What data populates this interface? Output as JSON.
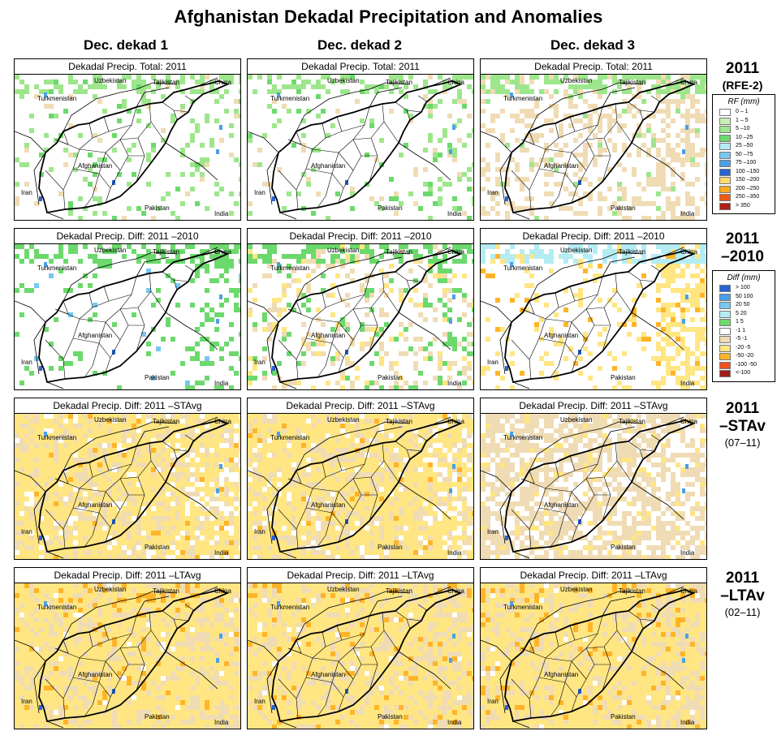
{
  "title": "Afghanistan Dekadal Precipitation and Anomalies",
  "columns": [
    "Dec. dekad 1",
    "Dec. dekad 2",
    "Dec. dekad 3"
  ],
  "rows": [
    {
      "head": "2011",
      "sub": "(RFE-2)",
      "sub2": "",
      "panel_title": "Dekadal Precip. Total: 2011",
      "kind": "total"
    },
    {
      "head": "2011",
      "sub": "–2010",
      "sub2": "",
      "panel_title": "Dekadal Precip. Diff:  2011 –2010",
      "kind": "diff2010"
    },
    {
      "head": "2011",
      "sub": "–STAv",
      "sub2": "(07–11)",
      "panel_title": "Dekadal Precip. Diff:  2011 –STAvg",
      "kind": "stavg"
    },
    {
      "head": "2011",
      "sub": "–LTAv",
      "sub2": "(02–11)",
      "panel_title": "Dekadal Precip. Diff:  2011 –LTAvg",
      "kind": "ltavg"
    }
  ],
  "map_labels": {
    "uzbekistan": "Uzbekistan",
    "tajikistan": "Tajikistan",
    "china": "China",
    "turkmenistan": "Turkmenistan",
    "afghanistan": "Afghanistan",
    "iran": "Iran",
    "pakistan": "Pakistan",
    "india": "India"
  },
  "legend_rf": {
    "title": "RF (mm)",
    "entries": [
      {
        "label": "0 – 1",
        "color": "#ffffff"
      },
      {
        "label": "1 – 5",
        "color": "#c8f0b4"
      },
      {
        "label": "5 –10",
        "color": "#9ee68c"
      },
      {
        "label": "10 –25",
        "color": "#6cd96c"
      },
      {
        "label": "25 –50",
        "color": "#b4ecf4"
      },
      {
        "label": "50 –75",
        "color": "#78c8f0"
      },
      {
        "label": "75 –100",
        "color": "#4aa0e6"
      },
      {
        "label": "100 –150",
        "color": "#2864d2"
      },
      {
        "label": "150 –200",
        "color": "#ffdc6e"
      },
      {
        "label": "200 –250",
        "color": "#ffaa1e"
      },
      {
        "label": "250 –350",
        "color": "#f05a14"
      },
      {
        "label": "> 350",
        "color": "#b41e14"
      }
    ]
  },
  "legend_diff": {
    "title": "Diff (mm)",
    "entries": [
      {
        "label": "> 100",
        "color": "#2864d2"
      },
      {
        "label": "50  100",
        "color": "#4aa0e6"
      },
      {
        "label": "20  50",
        "color": "#78c8f0"
      },
      {
        "label": "5  20",
        "color": "#b4ecf4"
      },
      {
        "label": "1  5",
        "color": "#6cd96c"
      },
      {
        "label": "-1  1",
        "color": "#ffffff"
      },
      {
        "label": "-5  -1",
        "color": "#f0dcb4"
      },
      {
        "label": "-20  -5",
        "color": "#ffe682"
      },
      {
        "label": "-50  -20",
        "color": "#ffb428"
      },
      {
        "label": "-100  -50",
        "color": "#f0501e"
      },
      {
        "label": "<-100",
        "color": "#a01e14"
      }
    ]
  }
}
